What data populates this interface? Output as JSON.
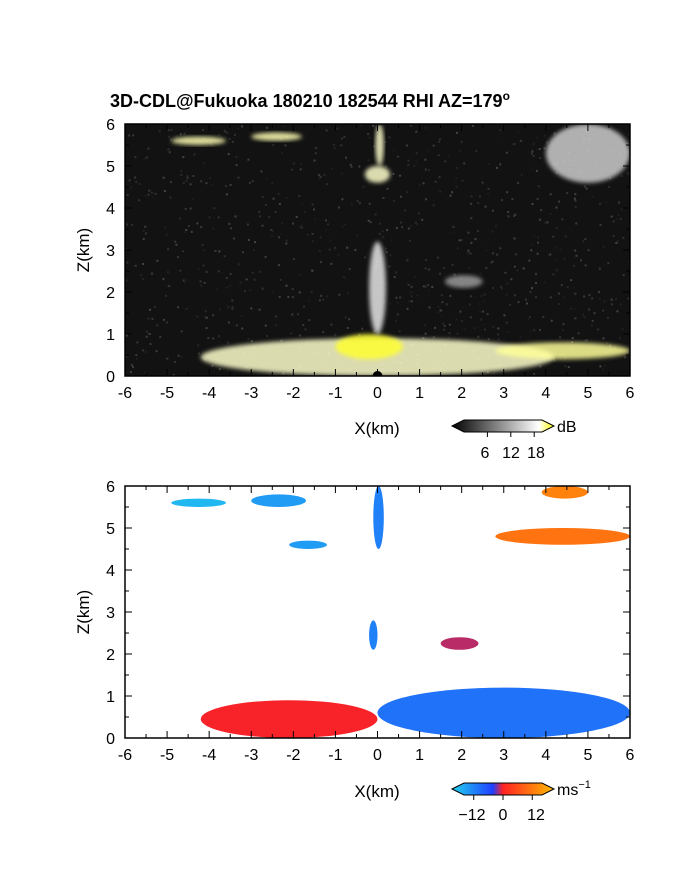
{
  "title": "3D-CDL@Fukuoka 180210 182544 RHI AZ=179",
  "title_superscript": "o",
  "chart_data": [
    {
      "type": "heatmap",
      "panel": "reflectivity",
      "xlabel": "X(km)",
      "ylabel": "Z(km)",
      "xlim": [
        -6,
        6
      ],
      "ylim": [
        0,
        6
      ],
      "xticks": [
        "-6",
        "-5",
        "-4",
        "-3",
        "-2",
        "-1",
        "0",
        "1",
        "2",
        "3",
        "4",
        "5",
        "6"
      ],
      "yticks": [
        "0",
        "1",
        "2",
        "3",
        "4",
        "5",
        "6"
      ],
      "colorbar": {
        "unit": "dB",
        "ticks": [
          "6",
          "12",
          "18"
        ],
        "range": [
          0,
          20
        ],
        "colors": [
          "#000000",
          "#ffffff",
          "#ffff00"
        ]
      },
      "background_color": "#121212",
      "features": [
        {
          "x": [
            -4.2,
            4.2
          ],
          "z": [
            0.0,
            0.9
          ],
          "level": 12
        },
        {
          "x": [
            -1.0,
            0.6
          ],
          "z": [
            0.4,
            1.0
          ],
          "level": 18
        },
        {
          "x": [
            -0.2,
            0.2
          ],
          "z": [
            1.0,
            3.2
          ],
          "level": 9
        },
        {
          "x": [
            -0.3,
            0.3
          ],
          "z": [
            4.6,
            5.0
          ],
          "level": 12
        },
        {
          "x": [
            -0.05,
            0.15
          ],
          "z": [
            5.0,
            6.0
          ],
          "level": 12
        },
        {
          "x": [
            -4.9,
            -3.6
          ],
          "z": [
            5.5,
            5.7
          ],
          "level": 13
        },
        {
          "x": [
            -3.0,
            -1.8
          ],
          "z": [
            5.6,
            5.8
          ],
          "level": 13
        },
        {
          "x": [
            2.8,
            6.0
          ],
          "z": [
            0.4,
            0.8
          ],
          "level": 14
        },
        {
          "x": [
            4.0,
            6.0
          ],
          "z": [
            4.6,
            6.0
          ],
          "level": 8
        },
        {
          "x": [
            1.6,
            2.5
          ],
          "z": [
            2.1,
            2.4
          ],
          "level": 6
        }
      ]
    },
    {
      "type": "heatmap",
      "panel": "doppler velocity",
      "xlabel": "X(km)",
      "ylabel": "Z(km)",
      "xlim": [
        -6,
        6
      ],
      "ylim": [
        0,
        6
      ],
      "xticks": [
        "-6",
        "-5",
        "-4",
        "-3",
        "-2",
        "-1",
        "0",
        "1",
        "2",
        "3",
        "4",
        "5",
        "6"
      ],
      "yticks": [
        "0",
        "1",
        "2",
        "3",
        "4",
        "5",
        "6"
      ],
      "colorbar": {
        "unit": "ms",
        "unit_superscript": "−1",
        "ticks": [
          "−12",
          "0",
          "12"
        ],
        "range": [
          -16,
          16
        ],
        "colors": [
          "#22d3ee",
          "#1f3fff",
          "#ff2222",
          "#ffbb00"
        ]
      },
      "background_color": "#ffffff",
      "features": [
        {
          "x": [
            -4.2,
            0.0
          ],
          "z": [
            0.0,
            0.9
          ],
          "velocity": 5
        },
        {
          "x": [
            0.0,
            6.0
          ],
          "z": [
            0.0,
            1.2
          ],
          "velocity": -9
        },
        {
          "x": [
            -0.1,
            0.15
          ],
          "z": [
            4.5,
            6.0
          ],
          "velocity": -10
        },
        {
          "x": [
            -0.2,
            0.0
          ],
          "z": [
            2.1,
            2.8
          ],
          "velocity": -10
        },
        {
          "x": [
            1.5,
            2.4
          ],
          "z": [
            2.1,
            2.4
          ],
          "velocity": 2
        },
        {
          "x": [
            -4.9,
            -3.6
          ],
          "z": [
            5.5,
            5.7
          ],
          "velocity": -14
        },
        {
          "x": [
            -3.0,
            -1.7
          ],
          "z": [
            5.5,
            5.8
          ],
          "velocity": -12
        },
        {
          "x": [
            2.8,
            6.0
          ],
          "z": [
            4.6,
            5.0
          ],
          "velocity": 11
        },
        {
          "x": [
            3.9,
            5.0
          ],
          "z": [
            5.7,
            6.0
          ],
          "velocity": 12
        },
        {
          "x": [
            -2.1,
            -1.2
          ],
          "z": [
            4.5,
            4.7
          ],
          "velocity": -12
        }
      ]
    }
  ]
}
